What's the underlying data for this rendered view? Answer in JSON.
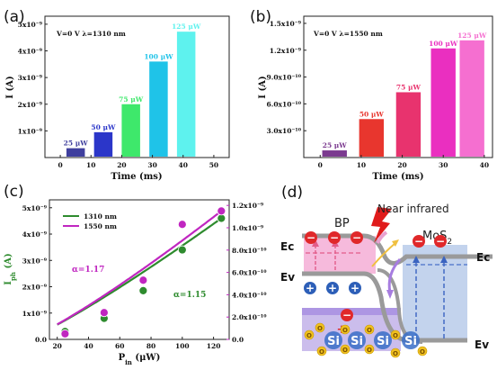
{
  "chart_data": [
    {
      "panel": "(a)",
      "type": "bar",
      "inset": "V=0 V   λ=1310 nm",
      "xlabel": "Time (ms)",
      "ylabel": "I (A)",
      "xticks": [
        "0",
        "10",
        "20",
        "30",
        "40",
        "50"
      ],
      "yticks": [
        "1x10⁻⁹",
        "2x10⁻⁹",
        "3x10⁻⁹",
        "4x10⁻⁹",
        "5x10⁻⁹"
      ],
      "xlim": [
        -5,
        55
      ],
      "ylim": [
        0,
        5.3
      ],
      "series": [
        {
          "name": "25 μW",
          "start": 2,
          "end": 8,
          "value": 0.35,
          "color": "#3f3f9e"
        },
        {
          "name": "50 μW",
          "start": 11,
          "end": 17,
          "value": 0.95,
          "color": "#2b36c9"
        },
        {
          "name": "75 μW",
          "start": 20,
          "end": 26,
          "value": 2.0,
          "color": "#3ee86b"
        },
        {
          "name": "100 μW",
          "start": 29,
          "end": 35,
          "value": 3.6,
          "color": "#1fc3e8"
        },
        {
          "name": "125 μW",
          "start": 38,
          "end": 44,
          "value": 4.72,
          "color": "#5ef2ee"
        }
      ]
    },
    {
      "panel": "(b)",
      "type": "bar",
      "inset": "V=0 V   λ=1550 nm",
      "xlabel": "Time (ms)",
      "ylabel": "I (A)",
      "xticks": [
        "0",
        "10",
        "20",
        "30",
        "40"
      ],
      "yticks": [
        "3.0x10⁻¹⁰",
        "6.0x10⁻¹⁰",
        "9.0x10⁻¹⁰",
        "1.2x10⁻⁹",
        "1.5x10⁻⁹"
      ],
      "xlim": [
        -4,
        42
      ],
      "ylim": [
        0,
        15.8
      ],
      "series": [
        {
          "name": "25 μW",
          "start": 0.5,
          "end": 6.5,
          "value": 0.8,
          "color": "#7b3a8f"
        },
        {
          "name": "50 μW",
          "start": 9.5,
          "end": 15.5,
          "value": 4.3,
          "color": "#e8362e"
        },
        {
          "name": "75 μW",
          "start": 18.5,
          "end": 24.5,
          "value": 7.3,
          "color": "#e8336e"
        },
        {
          "name": "100 μW",
          "start": 27,
          "end": 33,
          "value": 12.2,
          "color": "#ea2fc0"
        },
        {
          "name": "125 μW",
          "start": 34,
          "end": 40,
          "value": 13.1,
          "color": "#f56fd0"
        }
      ]
    },
    {
      "panel": "(c)",
      "type": "scatter",
      "xlabel": "P",
      "xlabel_sub": "in",
      "xlabel_unit": " (μW)",
      "ylabel": "I",
      "ylabel_sub": "ph",
      "ylabel_unit": " (A)",
      "xticks": [
        "20",
        "40",
        "60",
        "80",
        "100",
        "120"
      ],
      "yticks_left": [
        "0.0",
        "1x10⁻⁹",
        "2x10⁻⁹",
        "3x10⁻⁹",
        "4x10⁻⁹",
        "5x10⁻⁹"
      ],
      "yticks_right": [
        "0.0",
        "2.0x10⁻¹⁰",
        "4.0x10⁻¹⁰",
        "6.0x10⁻¹⁰",
        "8.0x10⁻¹⁰",
        "1.0x10⁻⁹",
        "1.2x10⁻⁹"
      ],
      "xlim": [
        15,
        130
      ],
      "ylim_left": [
        0,
        5.3
      ],
      "ylim_right": [
        0,
        12.5
      ],
      "series": [
        {
          "name": "1310 nm",
          "axis": "left",
          "color": "#2e8b2e",
          "alpha": "α=1.15",
          "x": [
            25,
            50,
            75,
            100,
            125
          ],
          "y": [
            0.3,
            0.8,
            1.85,
            3.4,
            4.6
          ]
        },
        {
          "name": "1550 nm",
          "axis": "right",
          "color": "#c026c0",
          "alpha": "α=1.17",
          "x": [
            25,
            50,
            75,
            100,
            125
          ],
          "y": [
            0.5,
            2.4,
            5.3,
            10.3,
            11.5
          ]
        }
      ]
    }
  ],
  "diagram": {
    "panel": "(d)",
    "near_infrared": "Near infrared",
    "bp": "BP",
    "mos2": "MoS",
    "mos2_sub": "2",
    "ec_left": "Ec",
    "ev_left": "Ev",
    "ec_right": "Ec",
    "ev_right": "Ev",
    "si": "Si",
    "o": "O",
    "minus": "−",
    "plus": "+"
  }
}
